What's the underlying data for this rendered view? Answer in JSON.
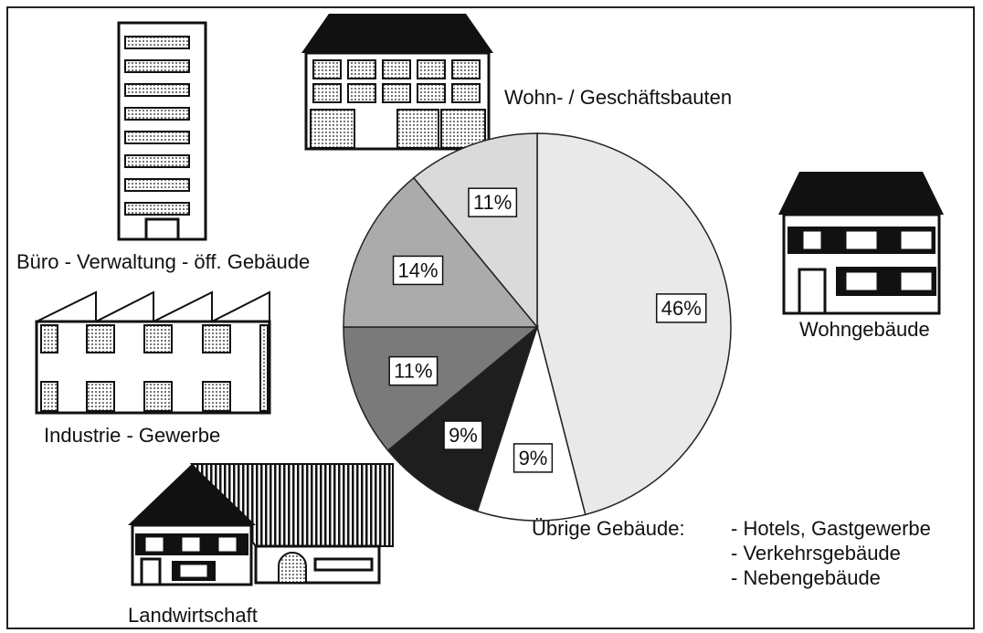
{
  "chart_data": {
    "type": "pie",
    "categories": [
      "Wohngebäude",
      "Übrige Gebäude:",
      "Landwirtschaft",
      "Industrie - Gewerbe",
      "Büro - Verwaltung - öff. Gebäude",
      "Wohn- / Geschäftsbauten"
    ],
    "values": [
      46,
      9,
      9,
      11,
      14,
      11
    ],
    "value_labels": [
      "46%",
      "9%",
      "9%",
      "11%",
      "14%",
      "11%"
    ],
    "colors": [
      "#e9e9e9",
      "#ffffff",
      "#1e1e1e",
      "#7a7a7a",
      "#ababab",
      "#dadada"
    ],
    "notes": [
      "- Hotels, Gastgewerbe",
      "- Verkehrsgebäude",
      "- Nebengebäude"
    ]
  }
}
